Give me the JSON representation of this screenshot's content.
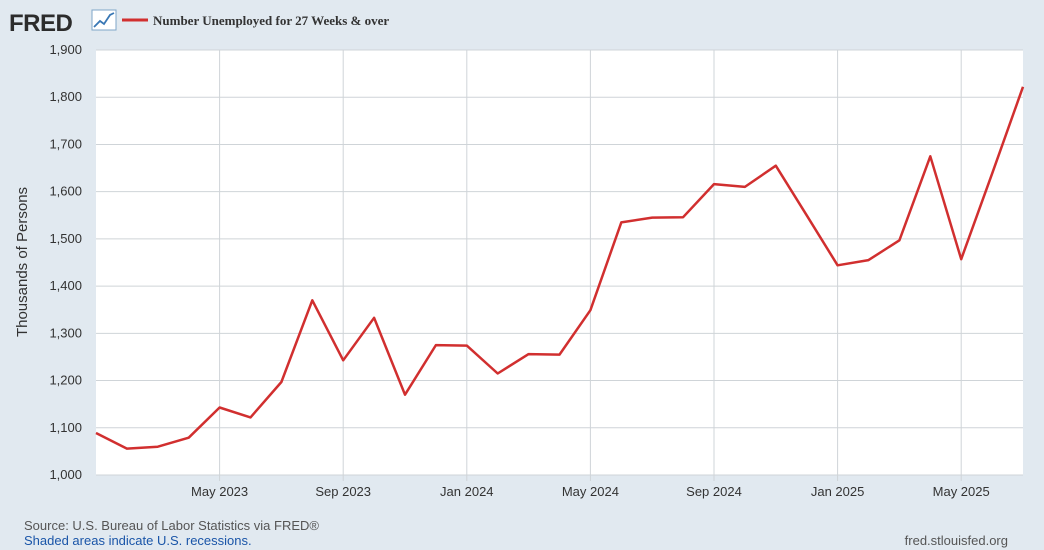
{
  "logo": {
    "text": "FRED"
  },
  "legend": {
    "label": "Number Unemployed for 27 Weeks & over",
    "color": "#d12f2f"
  },
  "footer": {
    "source": "Source: U.S. Bureau of Labor Statistics via FRED®",
    "recessions_note": "Shaded areas indicate U.S. recessions.",
    "site": "fred.stlouisfed.org"
  },
  "colors": {
    "page_background": "#e1e9f0",
    "plot_background": "#ffffff",
    "grid": "#cfd4d8",
    "series": "#d12f2f"
  },
  "chart_data": {
    "type": "line",
    "ylabel": "Thousands of Persons",
    "xlabel": "",
    "ylim": [
      1000,
      1900
    ],
    "xlim": [
      "2023-01",
      "2025-07"
    ],
    "y_ticks": [
      1000,
      1100,
      1200,
      1300,
      1400,
      1500,
      1600,
      1700,
      1800,
      1900
    ],
    "y_tick_labels": [
      "1,000",
      "1,100",
      "1,200",
      "1,300",
      "1,400",
      "1,500",
      "1,600",
      "1,700",
      "1,800",
      "1,900"
    ],
    "x_ticks": [
      "2023-05",
      "2023-09",
      "2024-01",
      "2024-05",
      "2024-09",
      "2025-01",
      "2025-05"
    ],
    "x_tick_labels": [
      "May 2023",
      "Sep 2023",
      "Jan 2024",
      "May 2024",
      "Sep 2024",
      "Jan 2025",
      "May 2025"
    ],
    "grid": true,
    "series": [
      {
        "name": "Number Unemployed for 27 Weeks & over",
        "x": [
          "2023-01",
          "2023-02",
          "2023-03",
          "2023-04",
          "2023-05",
          "2023-06",
          "2023-07",
          "2023-08",
          "2023-09",
          "2023-10",
          "2023-11",
          "2023-12",
          "2024-01",
          "2024-02",
          "2024-03",
          "2024-04",
          "2024-05",
          "2024-06",
          "2024-07",
          "2024-08",
          "2024-09",
          "2024-10",
          "2024-11",
          "2024-12",
          "2025-01",
          "2025-02",
          "2025-03",
          "2025-04",
          "2025-05",
          "2025-06",
          "2025-07"
        ],
        "values": [
          1089,
          1056,
          1060,
          1079,
          1143,
          1122,
          1197,
          1370,
          1243,
          1333,
          1170,
          1275,
          1274,
          1215,
          1256,
          1255,
          1349,
          1535,
          1545,
          1546,
          1616,
          1610,
          1655,
          1550,
          1444,
          1455,
          1497,
          1675,
          1457,
          1638,
          1822
        ]
      }
    ]
  }
}
